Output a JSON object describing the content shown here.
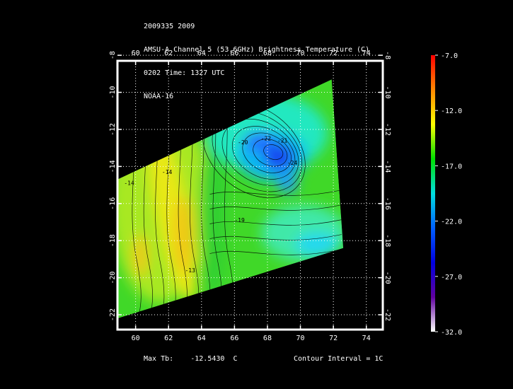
{
  "header": {
    "line1": "2009335 2009",
    "line2": "AMSU-A Channel 5 (53.6GHz) Brightness Temperature (C)",
    "line3": "0202 Time: 1327 UTC",
    "line4": "NOAA-16"
  },
  "footer": {
    "max_label": "Max Tb:",
    "max_value": "-12.5430",
    "max_unit": "C",
    "contour_interval": "Contour Interval = 1C"
  },
  "chart_data": {
    "type": "heatmap",
    "title": "AMSU-A Channel 5 (53.6GHz) Brightness Temperature (C)",
    "x_ticks": [
      60,
      62,
      64,
      66,
      68,
      70,
      72,
      74
    ],
    "y_ticks": [
      -8,
      -10,
      -12,
      -14,
      -16,
      -18,
      -20,
      -22
    ],
    "xlim": [
      58.9,
      75.0
    ],
    "ylim": [
      -8.3,
      -22.8
    ],
    "grid": true,
    "swath_corners": [
      [
        58.9,
        -14.7
      ],
      [
        71.9,
        -9.3
      ],
      [
        72.6,
        -18.4
      ],
      [
        58.9,
        -22.2
      ]
    ],
    "colorbar": {
      "ticks": [
        "-7.0",
        "-12.0",
        "-17.0",
        "-22.0",
        "-27.0",
        "-32.0"
      ],
      "range": [
        -7.0,
        -32.0
      ],
      "colors": [
        "#ff0000",
        "#ff8800",
        "#ffff00",
        "#00e000",
        "#00e0e0",
        "#0060ff",
        "#0000e0",
        "#6000a0",
        "#ffffff"
      ]
    },
    "features": {
      "cold_core_center": [
        68.7,
        -13.5
      ],
      "cold_core_min": -26.0,
      "warm_band_center": [
        62.9,
        -17.5
      ],
      "warm_band_max": -12.5,
      "contour_labels": [
        {
          "text": "-14",
          "x": 59.3,
          "y": -15.0
        },
        {
          "text": "-14",
          "x": 61.6,
          "y": -14.4
        },
        {
          "text": "-13",
          "x": 63.0,
          "y": -19.7
        },
        {
          "text": "-19",
          "x": 66.0,
          "y": -17.0
        },
        {
          "text": "-20",
          "x": 66.2,
          "y": -12.8
        },
        {
          "text": "-21",
          "x": 68.6,
          "y": -12.7
        },
        {
          "text": "-22",
          "x": 67.6,
          "y": -12.6
        },
        {
          "text": "-24",
          "x": 69.2,
          "y": -13.9
        }
      ]
    }
  }
}
